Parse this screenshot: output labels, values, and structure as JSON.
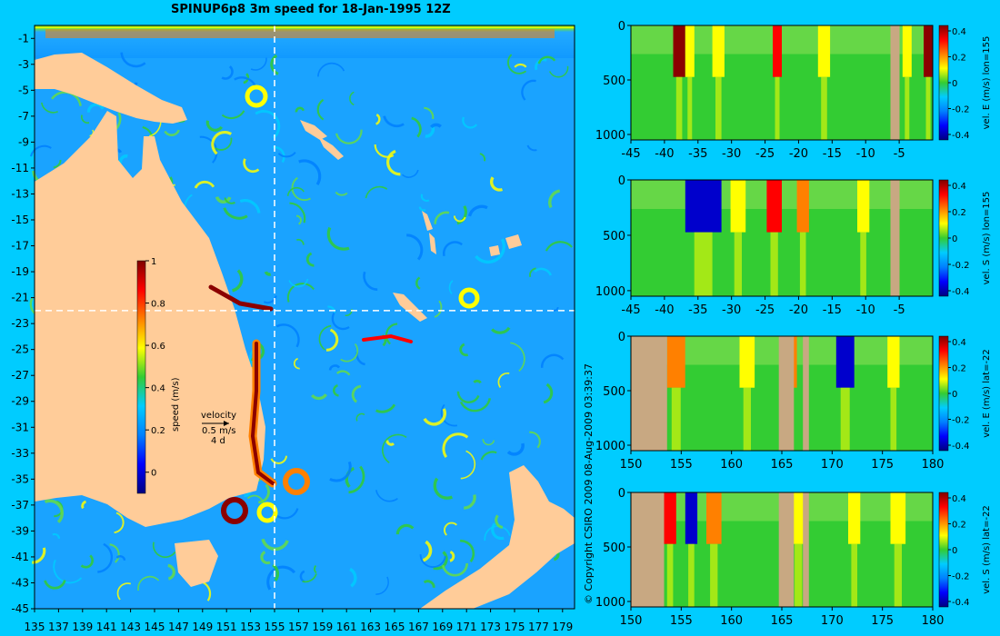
{
  "figure": {
    "title": "SPINUP6p8 3m speed for 18-Jan-1995 12Z",
    "copyright": "© Copyright CSIRO 2009   08-Aug-2009 03:39:37"
  },
  "colors": {
    "background": "#00ccff",
    "land_map": "#ffcc99",
    "land_section": "#c8a882",
    "crosshair": "#ffffff",
    "colormap": [
      "#000080",
      "#0000ff",
      "#0080ff",
      "#00ccff",
      "#33cc33",
      "#ffff00",
      "#ff8000",
      "#ff0000",
      "#800000"
    ]
  },
  "chart_data": [
    {
      "type": "heatmap",
      "panel": "map",
      "title": "SPINUP6p8 3m speed for 18-Jan-1995 12Z",
      "xlabel": "",
      "ylabel": "",
      "x_ticks": [
        135,
        137,
        139,
        141,
        143,
        145,
        147,
        149,
        151,
        153,
        155,
        157,
        159,
        161,
        163,
        165,
        167,
        169,
        171,
        173,
        175,
        177,
        179
      ],
      "y_ticks": [
        -1,
        -3,
        -5,
        -7,
        -9,
        -11,
        -13,
        -15,
        -17,
        -19,
        -21,
        -23,
        -25,
        -27,
        -29,
        -31,
        -33,
        -35,
        -37,
        -39,
        -41,
        -43,
        -45
      ],
      "xlim": [
        135,
        180
      ],
      "ylim": [
        -45,
        0
      ],
      "crosshair": {
        "lon": 155,
        "lat": -22
      },
      "colorbar": {
        "label": "speed (m/s)",
        "range": [
          -0.1,
          1
        ],
        "ticks": [
          0,
          0.2,
          0.4,
          0.6,
          0.8,
          1
        ]
      },
      "velocity_legend": {
        "title": "velocity",
        "speed": "0.5 m/s",
        "duration": "4 d"
      }
    },
    {
      "type": "heatmap",
      "panel": "section-1",
      "xlabel": "",
      "ylabel": "",
      "x_ticks": [
        "-45",
        "-40",
        "-35",
        "-30",
        "-25",
        "-20",
        "-15",
        "-10",
        "-5"
      ],
      "xlim": [
        -45,
        0
      ],
      "y_ticks": [
        "0",
        "500",
        "1000"
      ],
      "ylim": [
        1050,
        0
      ],
      "colorbar": {
        "label": "vel. E (m/s) lon=155",
        "ticks": [
          "0.4",
          "0.2",
          "0",
          "-0.2",
          "-0.4"
        ]
      }
    },
    {
      "type": "heatmap",
      "panel": "section-2",
      "xlabel": "",
      "ylabel": "",
      "x_ticks": [
        "-45",
        "-40",
        "-35",
        "-30",
        "-25",
        "-20",
        "-15",
        "-10",
        "-5"
      ],
      "xlim": [
        -45,
        0
      ],
      "y_ticks": [
        "0",
        "500",
        "1000"
      ],
      "ylim": [
        1050,
        0
      ],
      "colorbar": {
        "label": "vel. S (m/s) lon=155",
        "ticks": [
          "0.4",
          "0.2",
          "0",
          "-0.2",
          "-0.4"
        ]
      }
    },
    {
      "type": "heatmap",
      "panel": "section-3",
      "xlabel": "",
      "ylabel": "",
      "x_ticks": [
        "150",
        "155",
        "160",
        "165",
        "170",
        "175",
        "180"
      ],
      "xlim": [
        150,
        180
      ],
      "y_ticks": [
        "0",
        "500",
        "1000"
      ],
      "ylim": [
        1050,
        0
      ],
      "colorbar": {
        "label": "vel. E (m/s) lat=-22",
        "ticks": [
          "0.4",
          "0.2",
          "0",
          "-0.2",
          "-0.4"
        ]
      }
    },
    {
      "type": "heatmap",
      "panel": "section-4",
      "xlabel": "",
      "ylabel": "",
      "x_ticks": [
        "150",
        "155",
        "160",
        "165",
        "170",
        "175",
        "180"
      ],
      "xlim": [
        150,
        180
      ],
      "y_ticks": [
        "0",
        "500",
        "1000"
      ],
      "ylim": [
        1050,
        0
      ],
      "colorbar": {
        "label": "vel. S (m/s) lat=-22",
        "ticks": [
          "0.4",
          "0.2",
          "0",
          "-0.2",
          "-0.4"
        ]
      }
    }
  ]
}
